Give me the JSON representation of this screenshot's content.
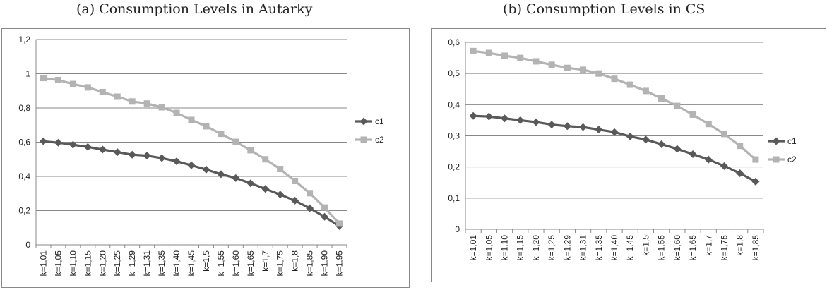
{
  "captions": {
    "a": "(a) Consumption Levels in Autarky",
    "b": "(b) Consumption Levels in CS"
  },
  "colors": {
    "c1": "#595959",
    "c2": "#b3b3b3",
    "grid": "#888888"
  },
  "chart_data": [
    {
      "type": "line",
      "title": "(a) Consumption Levels in Autarky",
      "categories": [
        "k=1,01",
        "k=1,05",
        "k=1,10",
        "k=1,15",
        "k=1,20",
        "k=1,25",
        "k=1,29",
        "k=1,31",
        "k=1,35",
        "k=1,40",
        "k=1,45",
        "k=1,5",
        "k=1,55",
        "k=1,60",
        "k=1,65",
        "k=1,7",
        "k=1,75",
        "k=1,8",
        "k=1,85",
        "k=1,90",
        "k=1,95"
      ],
      "ylim": [
        0,
        1.2
      ],
      "yticks": [
        0,
        0.2,
        0.4,
        0.6,
        0.8,
        1,
        1.2
      ],
      "ytick_labels": [
        "0",
        "0,2",
        "0,4",
        "0,6",
        "0,8",
        "1",
        "1,2"
      ],
      "grid": true,
      "legend": "right",
      "series": [
        {
          "name": "c1",
          "marker": "diamond",
          "values": [
            0.605,
            0.597,
            0.585,
            0.572,
            0.557,
            0.542,
            0.527,
            0.521,
            0.507,
            0.488,
            0.465,
            0.44,
            0.413,
            0.39,
            0.36,
            0.327,
            0.294,
            0.258,
            0.214,
            0.164,
            0.11
          ]
        },
        {
          "name": "c2",
          "marker": "square",
          "values": [
            0.975,
            0.963,
            0.94,
            0.92,
            0.893,
            0.866,
            0.838,
            0.826,
            0.804,
            0.771,
            0.73,
            0.693,
            0.649,
            0.602,
            0.553,
            0.5,
            0.443,
            0.373,
            0.302,
            0.218,
            0.124
          ]
        }
      ]
    },
    {
      "type": "line",
      "title": "(b) Consumption Levels in CS",
      "categories": [
        "k=1,01",
        "k=1,05",
        "k=1,10",
        "k=1,15",
        "k=1,20",
        "k=1,25",
        "k=1,29",
        "k=1,31",
        "k=1,35",
        "k=1,40",
        "k=1,45",
        "k=1,5",
        "k=1,55",
        "k=1,60",
        "k=1,65",
        "k=1,7",
        "k=1,75",
        "k=1,8",
        "k=1,85"
      ],
      "ylim": [
        0,
        0.6
      ],
      "yticks": [
        0,
        0.1,
        0.2,
        0.3,
        0.4,
        0.5,
        0.6
      ],
      "ytick_labels": [
        "0",
        "0,1",
        "0,2",
        "0,3",
        "0,4",
        "0,5",
        "0,6"
      ],
      "grid": true,
      "legend": "right",
      "series": [
        {
          "name": "c1",
          "marker": "diamond",
          "values": [
            0.364,
            0.362,
            0.356,
            0.35,
            0.344,
            0.336,
            0.331,
            0.328,
            0.32,
            0.312,
            0.298,
            0.288,
            0.273,
            0.258,
            0.241,
            0.224,
            0.203,
            0.18,
            0.153
          ]
        },
        {
          "name": "c2",
          "marker": "square",
          "values": [
            0.572,
            0.566,
            0.557,
            0.55,
            0.539,
            0.528,
            0.518,
            0.512,
            0.5,
            0.483,
            0.464,
            0.444,
            0.42,
            0.396,
            0.368,
            0.338,
            0.306,
            0.268,
            0.224
          ]
        }
      ]
    }
  ]
}
